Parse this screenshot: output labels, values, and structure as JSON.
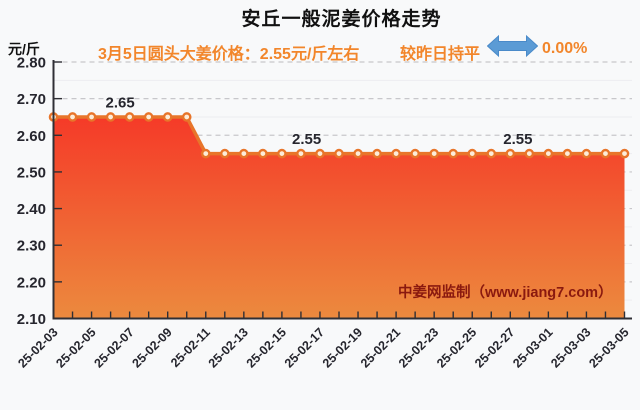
{
  "page": {
    "background": "#f8f9fa"
  },
  "header": {
    "title": "安丘一般泥姜价格走势",
    "unit_label": "元/斤",
    "subtitle": "3月5日圆头大姜价格：2.55元/斤左右",
    "comparison_label": "较昨日持平",
    "change_percent": "0.00%"
  },
  "watermark": "中姜网监制（www.jiang7.com）",
  "colors": {
    "title_text": "#111111",
    "subtitle_orange": "#f2862b",
    "arrow_blue": "#5b9bd5",
    "arrow_blue_edge": "#4a8ac9",
    "line_orange": "#e8752a",
    "marker_fill": "#fdecd8",
    "area_top": "#f53a28",
    "area_bottom": "#ec8a3e",
    "watermark_red": "#8a190f",
    "axis_dark": "#2f2f35",
    "tick_label": "#26262e",
    "grid_major": "#c7c7cb",
    "grid_minor": "#ededf0"
  },
  "chart_data": {
    "type": "area",
    "title": "安丘一般泥姜价格走势",
    "xlabel": "",
    "ylabel": "元/斤",
    "ylim": [
      2.1,
      2.8
    ],
    "y_tick_step": 0.1,
    "y_tick_labels": [
      "2.80",
      "2.70",
      "2.60",
      "2.50",
      "2.40",
      "2.30",
      "2.20",
      "2.10"
    ],
    "grid": "horizontal dashed major gridlines every 0.10, faint solid minor every 0.05",
    "legend": "none",
    "dates": [
      "25-02-03",
      "25-02-04",
      "25-02-05",
      "25-02-06",
      "25-02-07",
      "25-02-08",
      "25-02-09",
      "25-02-10",
      "25-02-11",
      "25-02-12",
      "25-02-13",
      "25-02-14",
      "25-02-15",
      "25-02-16",
      "25-02-17",
      "25-02-18",
      "25-02-19",
      "25-02-20",
      "25-02-21",
      "25-02-22",
      "25-02-23",
      "25-02-24",
      "25-02-25",
      "25-02-26",
      "25-02-27",
      "25-02-28",
      "25-03-01",
      "25-03-02",
      "25-03-03",
      "25-03-04",
      "25-03-05"
    ],
    "values": [
      2.65,
      2.65,
      2.65,
      2.65,
      2.65,
      2.65,
      2.65,
      2.65,
      2.55,
      2.55,
      2.55,
      2.55,
      2.55,
      2.55,
      2.55,
      2.55,
      2.55,
      2.55,
      2.55,
      2.55,
      2.55,
      2.55,
      2.55,
      2.55,
      2.55,
      2.55,
      2.55,
      2.55,
      2.55,
      2.55,
      2.55
    ],
    "x_tick_label_every": 2,
    "x_tick_labels": [
      "25-02-03",
      "25-02-05",
      "25-02-07",
      "25-02-09",
      "25-02-11",
      "25-02-13",
      "25-02-15",
      "25-02-17",
      "25-02-19",
      "25-02-21",
      "25-02-23",
      "25-02-25",
      "25-02-27",
      "25-03-01",
      "25-03-03",
      "25-03-05"
    ],
    "point_labels": [
      {
        "text": "2.65",
        "index": 3.5,
        "value": 2.65
      },
      {
        "text": "2.55",
        "index": 13.3,
        "value": 2.55
      },
      {
        "text": "2.55",
        "index": 24.4,
        "value": 2.55
      }
    ]
  }
}
